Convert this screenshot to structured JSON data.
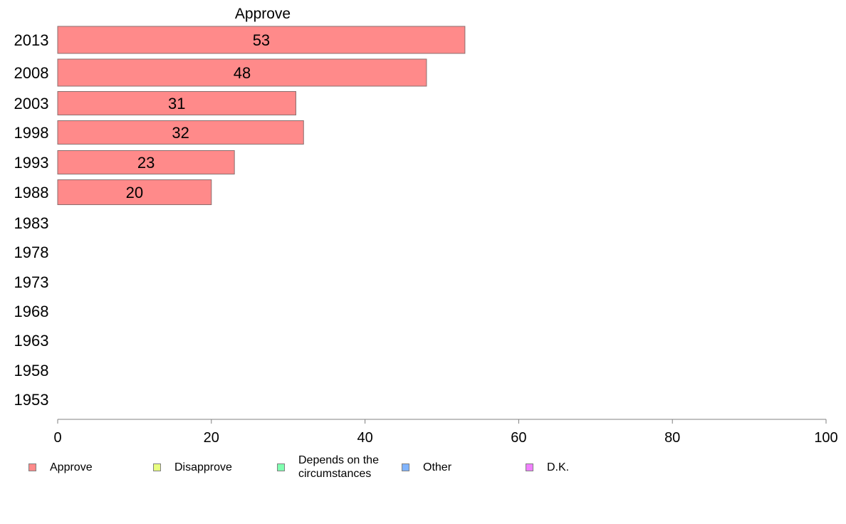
{
  "chart_data": {
    "type": "bar",
    "orientation": "horizontal",
    "title": "Approve",
    "categories": [
      "2013",
      "2008",
      "2003",
      "1998",
      "1993",
      "1988",
      "1983",
      "1978",
      "1973",
      "1968",
      "1963",
      "1958",
      "1953"
    ],
    "series": [
      {
        "name": "Approve",
        "color": "#ff8a8a",
        "values": [
          53,
          48,
          31,
          32,
          23,
          20,
          null,
          null,
          null,
          null,
          null,
          null,
          null
        ]
      }
    ],
    "data_labels": [
      "53",
      "48",
      "31",
      "32",
      "23",
      "20",
      "",
      "",
      "",
      "",
      "",
      "",
      ""
    ],
    "xlim": [
      0,
      100
    ],
    "xticks": [
      "0",
      "20",
      "40",
      "60",
      "80",
      "100"
    ],
    "xlabel": "",
    "ylabel": "",
    "grid": false,
    "legend_position": "bottom",
    "legend": [
      {
        "label": "Approve",
        "color": "#ff8a8a"
      },
      {
        "label": "Disapprove",
        "color": "#e8ff80"
      },
      {
        "label": "Depends on the\ncircumstances",
        "color": "#80ffb0"
      },
      {
        "label": "Other",
        "color": "#80b4ff"
      },
      {
        "label": "D.K.",
        "color": "#f080ff"
      }
    ]
  }
}
